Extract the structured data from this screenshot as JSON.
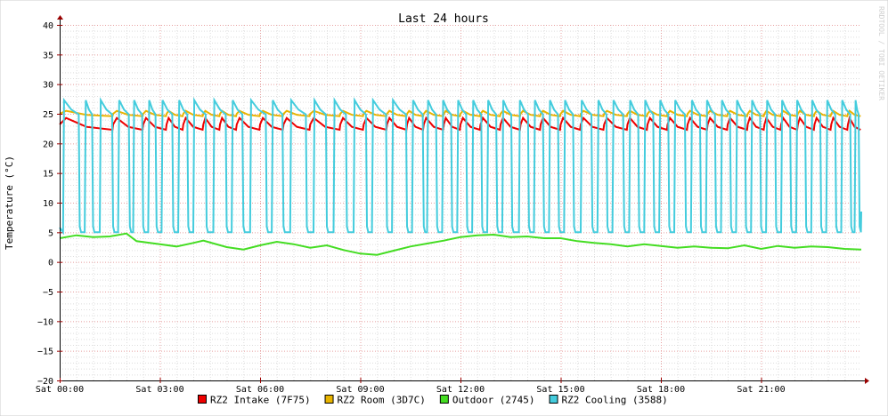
{
  "chart_data": {
    "type": "line",
    "title": "Last 24 hours",
    "ylabel": "Temperature (°C)",
    "xlabel": "",
    "watermark": "RRDTOOL / TOBI OETIKER",
    "ylim": [
      -20,
      40
    ],
    "yticks": [
      40,
      35,
      30,
      25,
      20,
      15,
      10,
      5,
      0,
      -5,
      -10,
      -15,
      -20
    ],
    "xlim_hours": [
      0,
      24
    ],
    "xticks": [
      {
        "label": "Sat 00:00",
        "hour": 0
      },
      {
        "label": "Sat 03:00",
        "hour": 3
      },
      {
        "label": "Sat 06:00",
        "hour": 6
      },
      {
        "label": "Sat 09:00",
        "hour": 9
      },
      {
        "label": "Sat 12:00",
        "hour": 12
      },
      {
        "label": "Sat 15:00",
        "hour": 15
      },
      {
        "label": "Sat 18:00",
        "hour": 18
      },
      {
        "label": "Sat 21:00",
        "hour": 21
      }
    ],
    "grid": true,
    "legend_position": "bottom-center",
    "series": [
      {
        "name": "RZ2 Intake (7F75)",
        "color": "#ee0000",
        "pattern": "sawtooth",
        "min": 22.3,
        "max": 24.3,
        "cycles": [
          [
            0.0,
            1.6
          ],
          [
            1.6,
            2.5
          ],
          [
            2.5,
            3.2
          ],
          [
            3.2,
            3.7
          ],
          [
            3.7,
            4.3
          ],
          [
            4.3,
            4.8
          ],
          [
            4.8,
            5.3
          ],
          [
            5.3,
            6.0
          ],
          [
            6.0,
            6.7
          ],
          [
            6.7,
            7.5
          ],
          [
            7.5,
            8.4
          ],
          [
            8.4,
            9.1
          ],
          [
            9.1,
            9.8
          ],
          [
            9.8,
            10.4
          ],
          [
            10.4,
            10.9
          ],
          [
            10.9,
            11.5
          ],
          [
            11.5,
            12.0
          ],
          [
            12.0,
            12.6
          ],
          [
            12.6,
            13.2
          ],
          [
            13.2,
            13.8
          ],
          [
            13.8,
            14.4
          ],
          [
            14.4,
            15.0
          ],
          [
            15.0,
            15.6
          ],
          [
            15.6,
            16.3
          ],
          [
            16.3,
            17.0
          ],
          [
            17.0,
            17.6
          ],
          [
            17.6,
            18.2
          ],
          [
            18.2,
            18.8
          ],
          [
            18.8,
            19.4
          ],
          [
            19.4,
            20.0
          ],
          [
            20.0,
            20.6
          ],
          [
            20.6,
            21.1
          ],
          [
            21.1,
            21.6
          ],
          [
            21.6,
            22.1
          ],
          [
            22.1,
            22.6
          ],
          [
            22.6,
            23.1
          ],
          [
            23.1,
            23.6
          ],
          [
            23.6,
            24.0
          ]
        ]
      },
      {
        "name": "RZ2 Room (3D7C)",
        "color": "#e8b400",
        "pattern": "sawtooth",
        "min": 24.6,
        "max": 25.5,
        "cycles": [
          [
            0.0,
            1.6
          ],
          [
            1.6,
            2.5
          ],
          [
            2.5,
            3.2
          ],
          [
            3.2,
            3.7
          ],
          [
            3.7,
            4.3
          ],
          [
            4.3,
            4.8
          ],
          [
            4.8,
            5.3
          ],
          [
            5.3,
            6.0
          ],
          [
            6.0,
            6.7
          ],
          [
            6.7,
            7.5
          ],
          [
            7.5,
            8.4
          ],
          [
            8.4,
            9.1
          ],
          [
            9.1,
            9.8
          ],
          [
            9.8,
            10.4
          ],
          [
            10.4,
            10.9
          ],
          [
            10.9,
            11.5
          ],
          [
            11.5,
            12.0
          ],
          [
            12.0,
            12.6
          ],
          [
            12.6,
            13.2
          ],
          [
            13.2,
            13.8
          ],
          [
            13.8,
            14.4
          ],
          [
            14.4,
            15.0
          ],
          [
            15.0,
            15.6
          ],
          [
            15.6,
            16.3
          ],
          [
            16.3,
            17.0
          ],
          [
            17.0,
            17.6
          ],
          [
            17.6,
            18.2
          ],
          [
            18.2,
            18.8
          ],
          [
            18.8,
            19.4
          ],
          [
            19.4,
            20.0
          ],
          [
            20.0,
            20.6
          ],
          [
            20.6,
            21.1
          ],
          [
            21.1,
            21.6
          ],
          [
            21.6,
            22.1
          ],
          [
            22.1,
            22.6
          ],
          [
            22.6,
            23.1
          ],
          [
            23.1,
            23.6
          ],
          [
            23.6,
            24.0
          ]
        ]
      },
      {
        "name": "Outdoor (2745)",
        "color": "#44dd22",
        "pattern": "points",
        "points": [
          [
            0,
            4.0
          ],
          [
            0.5,
            4.5
          ],
          [
            1,
            4.2
          ],
          [
            1.5,
            4.3
          ],
          [
            2,
            4.8
          ],
          [
            2.3,
            3.5
          ],
          [
            3,
            3.0
          ],
          [
            3.5,
            2.6
          ],
          [
            4,
            3.2
          ],
          [
            4.3,
            3.6
          ],
          [
            5,
            2.5
          ],
          [
            5.5,
            2.1
          ],
          [
            6,
            2.8
          ],
          [
            6.5,
            3.4
          ],
          [
            7,
            3.0
          ],
          [
            7.5,
            2.4
          ],
          [
            8,
            2.8
          ],
          [
            8.5,
            2.0
          ],
          [
            9,
            1.4
          ],
          [
            9.5,
            1.2
          ],
          [
            10,
            1.9
          ],
          [
            10.5,
            2.6
          ],
          [
            11,
            3.1
          ],
          [
            11.5,
            3.6
          ],
          [
            12,
            4.2
          ],
          [
            12.5,
            4.5
          ],
          [
            13,
            4.6
          ],
          [
            13.5,
            4.2
          ],
          [
            14,
            4.3
          ],
          [
            14.5,
            4.0
          ],
          [
            15,
            4.0
          ],
          [
            15.5,
            3.5
          ],
          [
            16,
            3.2
          ],
          [
            16.5,
            3.0
          ],
          [
            17,
            2.6
          ],
          [
            17.5,
            3.0
          ],
          [
            18,
            2.7
          ],
          [
            18.5,
            2.4
          ],
          [
            19,
            2.6
          ],
          [
            19.5,
            2.4
          ],
          [
            20,
            2.3
          ],
          [
            20.5,
            2.8
          ],
          [
            21,
            2.2
          ],
          [
            21.5,
            2.7
          ],
          [
            22,
            2.4
          ],
          [
            22.5,
            2.6
          ],
          [
            23,
            2.5
          ],
          [
            23.5,
            2.2
          ],
          [
            24,
            2.1
          ]
        ]
      },
      {
        "name": "RZ2 Cooling (3588)",
        "color": "#44ccdd",
        "pattern": "pulse",
        "min": 5.0,
        "max": 27.3,
        "pulses": [
          [
            0.1,
            0.6
          ],
          [
            0.75,
            1.0
          ],
          [
            1.2,
            1.6
          ],
          [
            1.75,
            2.1
          ],
          [
            2.2,
            2.5
          ],
          [
            2.65,
            2.9
          ],
          [
            3.05,
            3.4
          ],
          [
            3.55,
            3.85
          ],
          [
            4.0,
            4.4
          ],
          [
            4.6,
            5.0
          ],
          [
            5.15,
            5.5
          ],
          [
            5.7,
            6.2
          ],
          [
            6.35,
            6.7
          ],
          [
            6.9,
            7.4
          ],
          [
            7.6,
            8.0
          ],
          [
            8.2,
            8.6
          ],
          [
            8.8,
            9.2
          ],
          [
            9.35,
            9.8
          ],
          [
            9.95,
            10.4
          ],
          [
            10.55,
            10.9
          ],
          [
            11.0,
            11.3
          ],
          [
            11.45,
            11.75
          ],
          [
            11.9,
            12.2
          ],
          [
            12.35,
            12.65
          ],
          [
            12.8,
            13.1
          ],
          [
            13.25,
            13.55
          ],
          [
            13.75,
            14.05
          ],
          [
            14.2,
            14.5
          ],
          [
            14.65,
            14.95
          ],
          [
            15.1,
            15.4
          ],
          [
            15.6,
            15.95
          ],
          [
            16.1,
            16.4
          ],
          [
            16.55,
            16.9
          ],
          [
            17.05,
            17.35
          ],
          [
            17.5,
            17.8
          ],
          [
            17.95,
            18.25
          ],
          [
            18.4,
            18.75
          ],
          [
            18.9,
            19.2
          ],
          [
            19.35,
            19.65
          ],
          [
            19.8,
            20.1
          ],
          [
            20.25,
            20.55
          ],
          [
            20.7,
            21.0
          ],
          [
            21.15,
            21.45
          ],
          [
            21.6,
            21.9
          ],
          [
            22.05,
            22.35
          ],
          [
            22.5,
            22.8
          ],
          [
            22.95,
            23.25
          ],
          [
            23.4,
            23.7
          ],
          [
            23.8,
            23.95
          ]
        ]
      }
    ]
  }
}
